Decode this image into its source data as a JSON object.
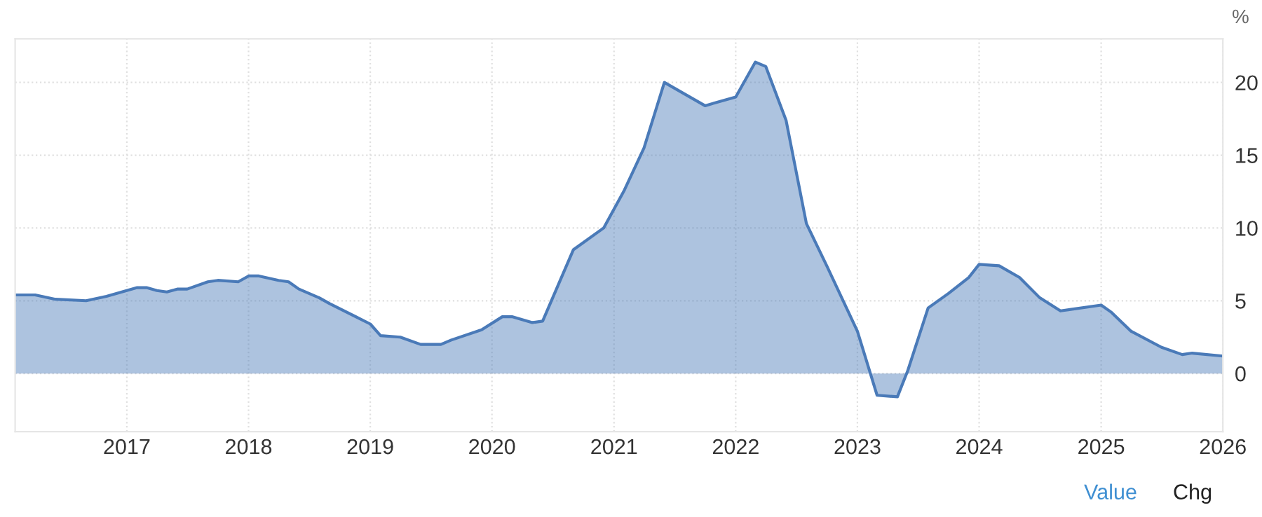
{
  "chart_data": {
    "type": "area",
    "ylabel": "%",
    "x": [
      "2016-02",
      "2016-04",
      "2016-06",
      "2016-09",
      "2016-11",
      "2017-02",
      "2017-03",
      "2017-04",
      "2017-05",
      "2017-06",
      "2017-07",
      "2017-09",
      "2017-10",
      "2017-12",
      "2018-01",
      "2018-02",
      "2018-04",
      "2018-05",
      "2018-06",
      "2018-08",
      "2018-09",
      "2019-01",
      "2019-02",
      "2019-04",
      "2019-06",
      "2019-08",
      "2019-09",
      "2019-12",
      "2020-02",
      "2020-03",
      "2020-05",
      "2020-06",
      "2020-09",
      "2020-12",
      "2021-02",
      "2021-04",
      "2021-06",
      "2021-10",
      "2022-01",
      "2022-03",
      "2022-04",
      "2022-06",
      "2022-08",
      "2022-10",
      "2023-01",
      "2023-03",
      "2023-05",
      "2023-06",
      "2023-08",
      "2023-10",
      "2023-12",
      "2024-01",
      "2024-03",
      "2024-05",
      "2024-07",
      "2024-09",
      "2025-01",
      "2025-02",
      "2025-04",
      "2025-07",
      "2025-09",
      "2025-10",
      "2026-01"
    ],
    "series": [
      {
        "color": "#4a7ab8",
        "values": [
          5.4,
          5.4,
          5.1,
          5.0,
          5.3,
          5.9,
          5.9,
          5.7,
          5.6,
          5.8,
          5.8,
          6.3,
          6.4,
          6.3,
          6.7,
          6.7,
          6.4,
          6.3,
          5.8,
          5.2,
          4.8,
          3.4,
          2.6,
          2.5,
          2.0,
          2.0,
          2.3,
          3.0,
          3.9,
          3.9,
          3.5,
          3.6,
          8.5,
          10.0,
          12.6,
          15.5,
          20.0,
          18.4,
          19.0,
          21.4,
          21.1,
          17.4,
          10.3,
          7.4,
          2.9,
          -1.5,
          -1.6,
          0.2,
          4.5,
          5.5,
          6.6,
          7.5,
          7.4,
          6.6,
          5.2,
          4.3,
          4.7,
          4.2,
          2.9,
          1.8,
          1.3,
          1.4,
          1.2
        ]
      }
    ],
    "xlim": [
      "2016-02",
      "2026-01"
    ],
    "xticks": [
      {
        "value": "2017-01",
        "label": "2017"
      },
      {
        "value": "2018-01",
        "label": "2018"
      },
      {
        "value": "2019-01",
        "label": "2019"
      },
      {
        "value": "2020-01",
        "label": "2020"
      },
      {
        "value": "2021-01",
        "label": "2021"
      },
      {
        "value": "2022-01",
        "label": "2022"
      },
      {
        "value": "2023-01",
        "label": "2023"
      },
      {
        "value": "2024-01",
        "label": "2024"
      },
      {
        "value": "2025-01",
        "label": "2025"
      },
      {
        "value": "2026-01",
        "label": "2026"
      }
    ],
    "ylim": [
      -4,
      23
    ],
    "yticks": [
      0,
      5,
      10,
      15,
      20
    ],
    "grid": true,
    "annotations": [
      "Value",
      "Chg"
    ]
  }
}
